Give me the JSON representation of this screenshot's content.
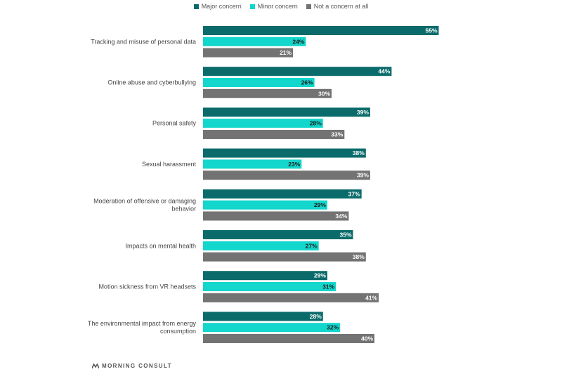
{
  "legend": [
    {
      "label": "Major concern",
      "color": "#0b6b6b"
    },
    {
      "label": "Minor concern",
      "color": "#13d6cc"
    },
    {
      "label": "Not a concern at all",
      "color": "#737373"
    }
  ],
  "brand": "MORNING CONSULT",
  "chart_data": {
    "type": "bar",
    "orientation": "horizontal",
    "categories": [
      [
        "Tracking and misuse of personal data"
      ],
      [
        "Online abuse and cyberbullying"
      ],
      [
        "Personal safety"
      ],
      [
        "Sexual harassment"
      ],
      [
        "Moderation of offensive or damaging",
        "behavior"
      ],
      [
        "Impacts on mental health"
      ],
      [
        "Motion sickness from VR headsets"
      ],
      [
        "The environmental impact from energy",
        "consumption"
      ]
    ],
    "series": [
      {
        "name": "Major concern",
        "color": "#0b6b6b",
        "label_color": "#ffffff",
        "values": [
          55,
          44,
          39,
          38,
          37,
          35,
          29,
          28
        ]
      },
      {
        "name": "Minor concern",
        "color": "#13d6cc",
        "label_color": "#1a1a1a",
        "values": [
          24,
          26,
          28,
          23,
          29,
          27,
          31,
          32
        ]
      },
      {
        "name": "Not a concern at all",
        "color": "#737373",
        "label_color": "#ffffff",
        "values": [
          21,
          30,
          33,
          39,
          34,
          38,
          41,
          40
        ]
      }
    ],
    "value_suffix": "%",
    "xlim": [
      0,
      55
    ],
    "grid": false,
    "legend_position": "top"
  }
}
